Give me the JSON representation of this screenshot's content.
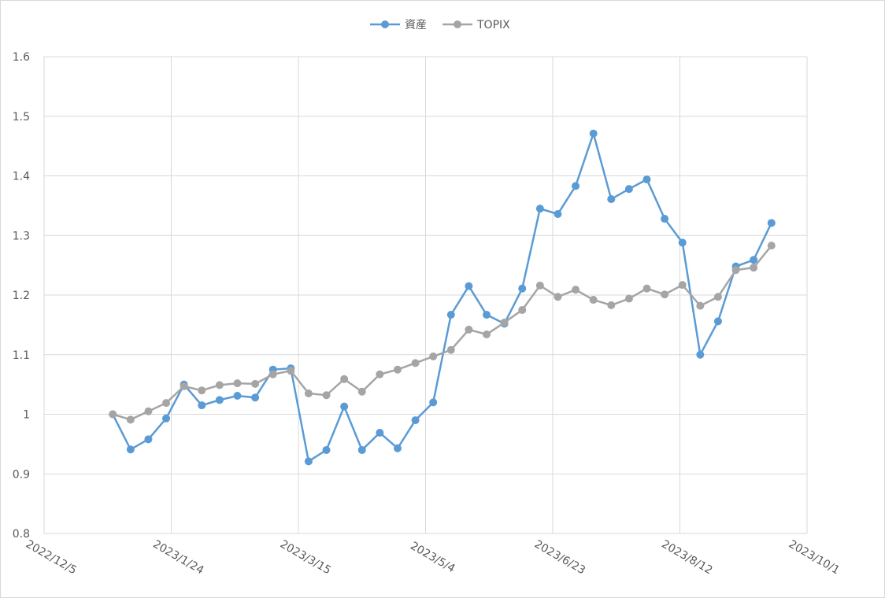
{
  "chart_data": {
    "type": "line",
    "x": [
      "2023/1/1",
      "2023/1/8",
      "2023/1/15",
      "2023/1/22",
      "2023/1/29",
      "2023/2/5",
      "2023/2/12",
      "2023/2/19",
      "2023/2/26",
      "2023/3/5",
      "2023/3/12",
      "2023/3/19",
      "2023/3/26",
      "2023/4/2",
      "2023/4/9",
      "2023/4/16",
      "2023/4/23",
      "2023/4/30",
      "2023/5/7",
      "2023/5/14",
      "2023/5/21",
      "2023/5/28",
      "2023/6/4",
      "2023/6/11",
      "2023/6/18",
      "2023/6/25",
      "2023/7/2",
      "2023/7/9",
      "2023/7/16",
      "2023/7/23",
      "2023/7/30",
      "2023/8/6",
      "2023/8/13",
      "2023/8/20",
      "2023/8/27",
      "2023/9/3",
      "2023/9/10",
      "2023/9/17"
    ],
    "series": [
      {
        "name": "資産",
        "color": "#5b9bd5",
        "values": [
          1.0,
          0.941,
          0.958,
          0.993,
          1.05,
          1.015,
          1.024,
          1.031,
          1.028,
          1.075,
          1.077,
          0.921,
          0.94,
          1.013,
          0.94,
          0.969,
          0.943,
          0.99,
          1.02,
          1.167,
          1.215,
          1.167,
          1.152,
          1.211,
          1.345,
          1.336,
          1.383,
          1.471,
          1.361,
          1.378,
          1.394,
          1.328,
          1.288,
          1.1,
          1.156,
          1.248,
          1.259,
          1.321
        ]
      },
      {
        "name": "TOPIX",
        "color": "#a5a5a5",
        "values": [
          1.0,
          0.991,
          1.005,
          1.019,
          1.047,
          1.04,
          1.049,
          1.052,
          1.051,
          1.067,
          1.073,
          1.035,
          1.032,
          1.059,
          1.038,
          1.067,
          1.075,
          1.086,
          1.097,
          1.108,
          1.142,
          1.134,
          1.154,
          1.175,
          1.216,
          1.197,
          1.209,
          1.192,
          1.183,
          1.194,
          1.211,
          1.201,
          1.217,
          1.182,
          1.197,
          1.242,
          1.246,
          1.283
        ]
      }
    ],
    "xlim": [
      "2022/12/5",
      "2023/10/1"
    ],
    "xticks": [
      "2022/12/5",
      "2023/1/24",
      "2023/3/15",
      "2023/5/4",
      "2023/6/23",
      "2023/8/12",
      "2023/10/1"
    ],
    "ylim": [
      0.8,
      1.6
    ],
    "yticks": [
      0.8,
      0.9,
      1,
      1.1,
      1.2,
      1.3,
      1.4,
      1.5,
      1.6
    ],
    "grid": true,
    "legend": "top"
  }
}
